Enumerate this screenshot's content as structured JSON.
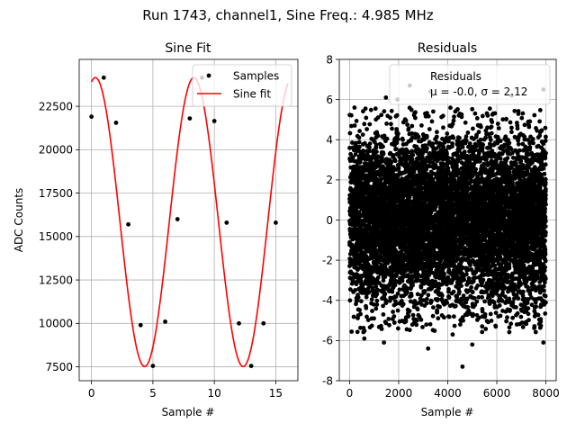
{
  "suptitle": "Run 1743, channel1, Sine Freq.: 4.985 MHz",
  "chart_data": [
    {
      "type": "line",
      "title": "Sine Fit",
      "xlabel": "Sample #",
      "ylabel": "ADC Counts",
      "xlim": [
        -1,
        16.8
      ],
      "ylim": [
        6700,
        25200
      ],
      "xticks": [
        0,
        5,
        10,
        15
      ],
      "yticks": [
        7500,
        10000,
        12500,
        15000,
        17500,
        20000,
        22500
      ],
      "grid": true,
      "legend": {
        "position": "upper-right",
        "entries": [
          "Samples",
          "Sine fit"
        ]
      },
      "series": [
        {
          "name": "Samples",
          "kind": "scatter",
          "color": "#000000",
          "x": [
            0,
            1,
            2,
            3,
            4,
            5,
            6,
            7,
            8,
            9,
            10,
            11,
            12,
            13,
            14,
            15
          ],
          "y": [
            21900,
            24150,
            21550,
            15700,
            9900,
            7550,
            10100,
            16000,
            21800,
            24150,
            21650,
            15800,
            10000,
            7550,
            10000,
            15800
          ]
        },
        {
          "name": "Sine fit",
          "kind": "line",
          "color": "#ff0000",
          "model": {
            "offset": 15835,
            "amplitude": 8320,
            "period": 8.02,
            "phase_deg": 75.8,
            "x_range": [
              0,
              16
            ]
          }
        }
      ]
    },
    {
      "type": "scatter",
      "title": "Residuals",
      "xlabel": "Sample #",
      "ylabel": "",
      "xlim": [
        -420,
        8420
      ],
      "ylim": [
        -8,
        8
      ],
      "xticks": [
        0,
        2000,
        4000,
        6000,
        8000
      ],
      "yticks": [
        -8,
        -6,
        -4,
        -2,
        0,
        2,
        4,
        6,
        8
      ],
      "grid": true,
      "color": "#000000",
      "legend": {
        "position": "upper-right",
        "entries": [
          "Residuals",
          "μ = -0.0, σ = 2.12"
        ]
      },
      "stats": {
        "mu": -0.0,
        "sigma": 2.12,
        "n_points": 8000
      },
      "outliers": [
        {
          "x": 2450,
          "y": 6.7
        },
        {
          "x": 1480,
          "y": 6.1
        },
        {
          "x": 1950,
          "y": 6.0
        },
        {
          "x": 3300,
          "y": 6.4
        },
        {
          "x": 6600,
          "y": 6.2
        },
        {
          "x": 7900,
          "y": 6.5
        },
        {
          "x": 200,
          "y": 5.6
        },
        {
          "x": 4600,
          "y": -7.3
        },
        {
          "x": 3200,
          "y": -6.4
        },
        {
          "x": 5000,
          "y": -6.2
        },
        {
          "x": 1400,
          "y": -6.1
        },
        {
          "x": 7900,
          "y": -6.1
        },
        {
          "x": 600,
          "y": -5.9
        },
        {
          "x": 4200,
          "y": -5.7
        }
      ]
    }
  ]
}
